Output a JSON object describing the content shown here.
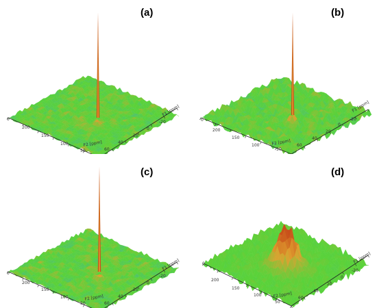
{
  "figure": {
    "panels": [
      {
        "label": "(a)",
        "axis_x_label": "F2 [ppm]",
        "axis_y_label": "F1 [ppm]",
        "x_ticks": [
          "200",
          "150",
          "100",
          "50"
        ],
        "y_ticks": [
          "60",
          "40",
          "20",
          "0",
          "-20"
        ],
        "corner_tick": "0"
      },
      {
        "label": "(b)",
        "axis_x_label": "F2 [ppm]",
        "axis_y_label": "F1 [ppm]",
        "x_ticks": [
          "200",
          "150",
          "100",
          "50"
        ],
        "y_ticks": [
          "60",
          "40",
          "20",
          "0",
          "-20"
        ],
        "corner_tick": "0"
      },
      {
        "label": "(c)",
        "axis_x_label": "F2 [ppm]",
        "axis_y_label": "F1 [ppm]",
        "x_ticks": [
          "200",
          "150",
          "100",
          "50"
        ],
        "y_ticks": [
          "60",
          "40",
          "20",
          "0",
          "-20"
        ],
        "corner_tick": "0"
      },
      {
        "label": "(d)",
        "axis_x_label": "F2 [ppm]",
        "axis_y_label": "F1 [ppm]",
        "x_ticks": [
          "200",
          "150",
          "100",
          "50"
        ],
        "y_ticks": [
          "60",
          "40",
          "20",
          "0",
          "-20"
        ],
        "corner_tick": "0"
      }
    ]
  },
  "colors": {
    "surface_low": "#3aa0e0",
    "surface_mid": "#5ad23a",
    "surface_high": "#e0a030",
    "peak": "#c8501a"
  },
  "chart_data": [
    {
      "type": "surface",
      "peak": "sharp",
      "noise": "low"
    },
    {
      "type": "surface",
      "peak": "sharp",
      "noise": "medium"
    },
    {
      "type": "surface",
      "peak": "sharp",
      "noise": "low"
    },
    {
      "type": "surface",
      "peak": "broad",
      "noise": "high"
    }
  ]
}
